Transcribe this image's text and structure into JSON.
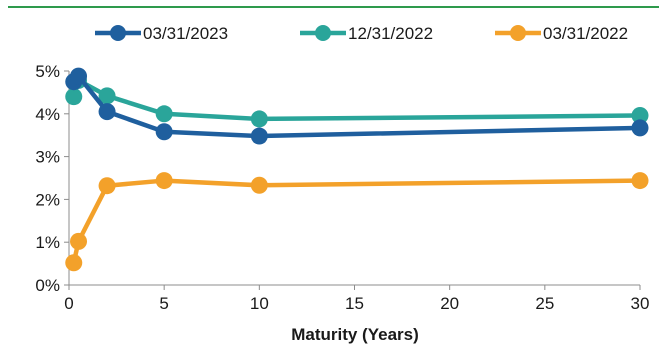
{
  "chart_data": {
    "type": "line",
    "xlabel": "Maturity (Years)",
    "ylabel": "",
    "xlim": [
      0,
      30
    ],
    "ylim": [
      0,
      5
    ],
    "x_ticks": [
      0,
      5,
      10,
      15,
      20,
      25,
      30
    ],
    "y_ticks": [
      0,
      1,
      2,
      3,
      4,
      5
    ],
    "x_tick_labels": [
      "0",
      "5",
      "10",
      "15",
      "20",
      "25",
      "30"
    ],
    "y_tick_labels": [
      "0%",
      "1%",
      "2%",
      "3%",
      "4%",
      "5%"
    ],
    "legend_position": "top",
    "grid": false,
    "series": [
      {
        "name": "03/31/2023",
        "color": "#1f5f9e",
        "points": [
          [
            0.25,
            4.75
          ],
          [
            0.5,
            4.88
          ],
          [
            2,
            4.05
          ],
          [
            5,
            3.58
          ],
          [
            10,
            3.48
          ],
          [
            30,
            3.67
          ]
        ]
      },
      {
        "name": "12/31/2022",
        "color": "#2aa59a",
        "points": [
          [
            0.25,
            4.4
          ],
          [
            0.5,
            4.78
          ],
          [
            2,
            4.42
          ],
          [
            5,
            4.0
          ],
          [
            10,
            3.88
          ],
          [
            30,
            3.96
          ]
        ]
      },
      {
        "name": "03/31/2022",
        "color": "#f3a12a",
        "points": [
          [
            0.25,
            0.52
          ],
          [
            0.5,
            1.02
          ],
          [
            2,
            2.32
          ],
          [
            5,
            2.44
          ],
          [
            10,
            2.33
          ],
          [
            30,
            2.44
          ]
        ]
      }
    ]
  }
}
